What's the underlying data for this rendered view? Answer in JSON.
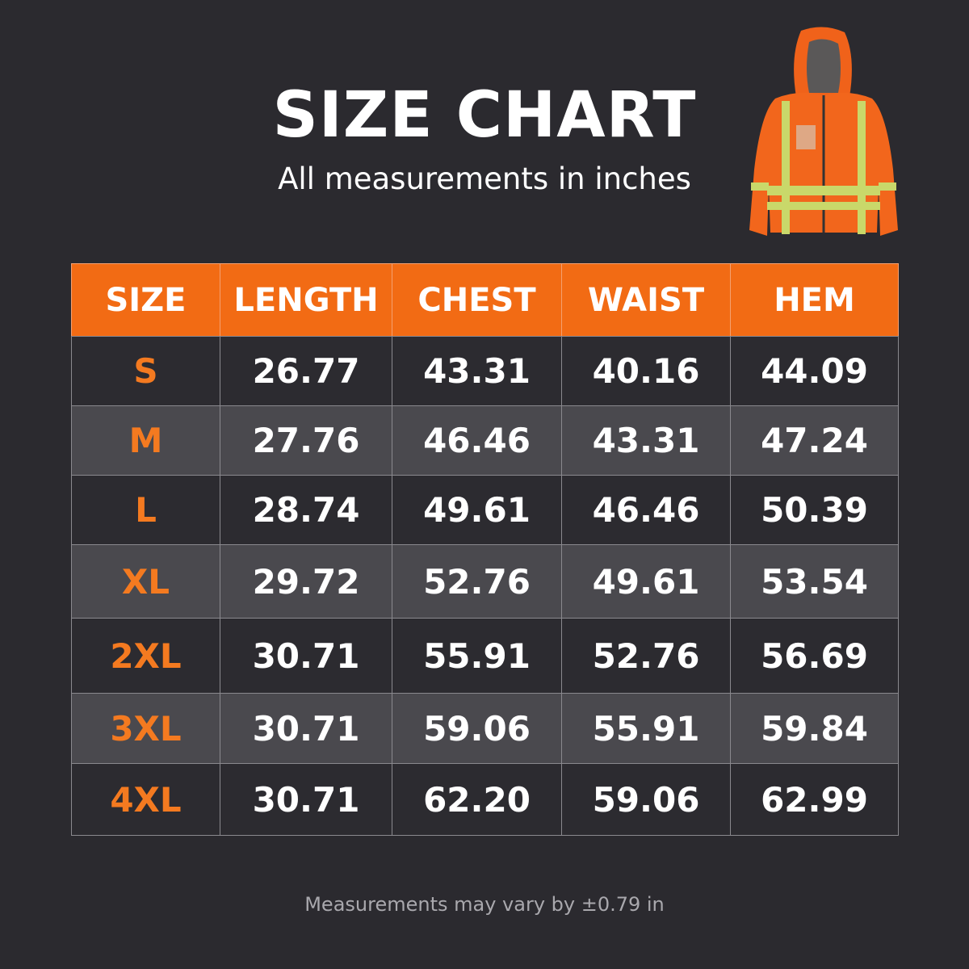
{
  "header": {
    "title": "SIZE CHART",
    "subtitle": "All measurements in inches"
  },
  "table": {
    "columns": [
      "SIZE",
      "LENGTH",
      "CHEST",
      "WAIST",
      "HEM"
    ],
    "rows": [
      [
        "S",
        "26.77",
        "43.31",
        "40.16",
        "44.09"
      ],
      [
        "M",
        "27.76",
        "46.46",
        "43.31",
        "47.24"
      ],
      [
        "L",
        "28.74",
        "49.61",
        "46.46",
        "50.39"
      ],
      [
        "XL",
        "29.72",
        "52.76",
        "49.61",
        "53.54"
      ],
      [
        "2XL",
        "30.71",
        "55.91",
        "52.76",
        "56.69"
      ],
      [
        "3XL",
        "30.71",
        "59.06",
        "55.91",
        "59.84"
      ],
      [
        "4XL",
        "30.71",
        "62.20",
        "59.06",
        "62.99"
      ]
    ]
  },
  "footer": {
    "note": "Measurements may vary by ±0.79 in"
  }
}
